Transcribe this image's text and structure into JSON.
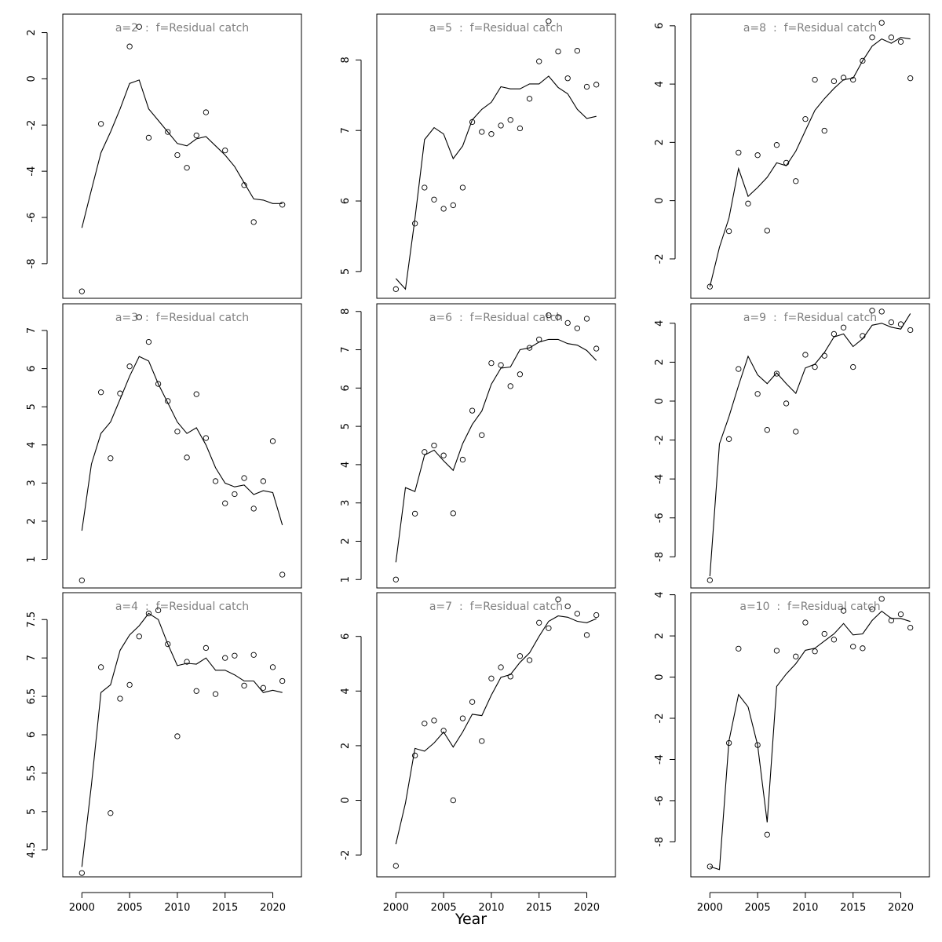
{
  "figure": {
    "xlabel": "Year"
  },
  "chart_data": [
    {
      "type": "line",
      "title": "a=2  :  f=Residual catch",
      "xlim": [
        1998,
        2023
      ],
      "ylim": [
        -9.5,
        2.8
      ],
      "xticks": [
        2000,
        2005,
        2010,
        2015,
        2020
      ],
      "yticks": [
        -8,
        -6,
        -4,
        -2,
        0,
        2
      ],
      "series": [
        {
          "kind": "points",
          "x": [
            2000,
            2002,
            2005,
            2006,
            2007,
            2009,
            2010,
            2011,
            2012,
            2013,
            2015,
            2017,
            2018,
            2021
          ],
          "y": [
            -9.2,
            -1.95,
            1.4,
            2.25,
            -2.55,
            -2.3,
            -3.3,
            -3.85,
            -2.45,
            -1.45,
            -3.1,
            -4.6,
            -6.2,
            -5.45
          ]
        },
        {
          "kind": "line",
          "x": [
            2000,
            2001,
            2002,
            2003,
            2004,
            2005,
            2006,
            2007,
            2008,
            2009,
            2010,
            2011,
            2012,
            2013,
            2014,
            2015,
            2016,
            2017,
            2018,
            2019,
            2020,
            2021
          ],
          "y": [
            -6.45,
            -4.8,
            -3.2,
            -2.3,
            -1.3,
            -0.2,
            -0.05,
            -1.3,
            -1.8,
            -2.3,
            -2.8,
            -2.9,
            -2.6,
            -2.5,
            -2.9,
            -3.3,
            -3.8,
            -4.5,
            -5.2,
            -5.25,
            -5.4,
            -5.4
          ]
        }
      ]
    },
    {
      "type": "line",
      "title": "a=3  :  f=Residual catch",
      "xlim": [
        1998,
        2023
      ],
      "ylim": [
        0.25,
        7.7
      ],
      "xticks": [
        2000,
        2005,
        2010,
        2015,
        2020
      ],
      "yticks": [
        1,
        2,
        3,
        4,
        5,
        6,
        7
      ],
      "series": [
        {
          "kind": "points",
          "x": [
            2000,
            2002,
            2003,
            2004,
            2005,
            2006,
            2007,
            2008,
            2009,
            2010,
            2011,
            2012,
            2013,
            2014,
            2015,
            2016,
            2017,
            2018,
            2019,
            2020,
            2021
          ],
          "y": [
            0.45,
            5.38,
            3.65,
            5.35,
            6.06,
            7.35,
            6.7,
            5.6,
            5.15,
            4.35,
            3.67,
            5.33,
            4.18,
            3.05,
            2.47,
            2.71,
            3.13,
            2.33,
            3.05,
            4.1,
            0.6
          ]
        },
        {
          "kind": "line",
          "x": [
            2000,
            2001,
            2002,
            2003,
            2004,
            2005,
            2006,
            2007,
            2008,
            2009,
            2010,
            2011,
            2012,
            2013,
            2014,
            2015,
            2016,
            2017,
            2018,
            2019,
            2020,
            2021
          ],
          "y": [
            1.75,
            3.5,
            4.3,
            4.6,
            5.2,
            5.8,
            6.32,
            6.2,
            5.6,
            5.1,
            4.6,
            4.3,
            4.45,
            4.0,
            3.4,
            3.0,
            2.9,
            2.95,
            2.7,
            2.8,
            2.75,
            1.9
          ]
        }
      ]
    },
    {
      "type": "line",
      "title": "a=4  :  f=Residual catch",
      "xlim": [
        1998,
        2023
      ],
      "ylim": [
        4.15,
        7.85
      ],
      "xticks": [
        2000,
        2005,
        2010,
        2015,
        2020
      ],
      "yticks": [
        4.5,
        5.0,
        5.5,
        6.0,
        6.5,
        7.0,
        7.5
      ],
      "series": [
        {
          "kind": "points",
          "x": [
            2000,
            2002,
            2003,
            2004,
            2005,
            2006,
            2007,
            2008,
            2009,
            2010,
            2011,
            2012,
            2013,
            2014,
            2015,
            2016,
            2017,
            2018,
            2019,
            2020,
            2021
          ],
          "y": [
            4.2,
            6.88,
            4.98,
            6.47,
            6.65,
            7.28,
            7.58,
            7.62,
            7.18,
            5.98,
            6.95,
            6.57,
            7.13,
            6.53,
            7.0,
            7.03,
            6.64,
            7.04,
            6.61,
            6.88,
            6.7
          ]
        },
        {
          "kind": "line",
          "x": [
            2000,
            2001,
            2002,
            2003,
            2004,
            2005,
            2006,
            2007,
            2008,
            2009,
            2010,
            2011,
            2012,
            2013,
            2014,
            2015,
            2016,
            2017,
            2018,
            2019,
            2020,
            2021
          ],
          "y": [
            4.28,
            5.35,
            6.55,
            6.65,
            7.1,
            7.3,
            7.42,
            7.58,
            7.5,
            7.18,
            6.9,
            6.93,
            6.92,
            7.0,
            6.84,
            6.84,
            6.78,
            6.7,
            6.7,
            6.55,
            6.58,
            6.55
          ]
        }
      ]
    },
    {
      "type": "line",
      "title": "a=5  :  f=Residual catch",
      "xlim": [
        1998,
        2023
      ],
      "ylim": [
        4.62,
        8.65
      ],
      "xticks": [
        2000,
        2005,
        2010,
        2015,
        2020
      ],
      "yticks": [
        5,
        6,
        7,
        8
      ],
      "series": [
        {
          "kind": "points",
          "x": [
            2000,
            2002,
            2003,
            2004,
            2005,
            2006,
            2007,
            2008,
            2009,
            2010,
            2011,
            2012,
            2013,
            2014,
            2015,
            2016,
            2017,
            2018,
            2019,
            2020,
            2021
          ],
          "y": [
            4.75,
            5.68,
            6.19,
            6.02,
            5.89,
            5.94,
            6.19,
            7.12,
            6.98,
            6.95,
            7.07,
            7.15,
            7.03,
            7.45,
            7.98,
            8.55,
            8.12,
            7.74,
            8.13,
            7.62,
            7.65
          ]
        },
        {
          "kind": "line",
          "x": [
            2000,
            2001,
            2002,
            2003,
            2004,
            2005,
            2006,
            2007,
            2008,
            2009,
            2010,
            2011,
            2012,
            2013,
            2014,
            2015,
            2016,
            2017,
            2018,
            2019,
            2020,
            2021
          ],
          "y": [
            4.9,
            4.75,
            5.75,
            6.87,
            7.04,
            6.95,
            6.6,
            6.78,
            7.15,
            7.3,
            7.4,
            7.62,
            7.59,
            7.59,
            7.66,
            7.66,
            7.77,
            7.61,
            7.52,
            7.3,
            7.17,
            7.2
          ]
        }
      ]
    },
    {
      "type": "line",
      "title": "a=6  :  f=Residual catch",
      "xlim": [
        1998,
        2023
      ],
      "ylim": [
        0.78,
        8.2
      ],
      "xticks": [
        2000,
        2005,
        2010,
        2015,
        2020
      ],
      "yticks": [
        1,
        2,
        3,
        4,
        5,
        6,
        7,
        8
      ],
      "series": [
        {
          "kind": "points",
          "x": [
            2000,
            2002,
            2003,
            2004,
            2005,
            2006,
            2007,
            2008,
            2009,
            2010,
            2011,
            2012,
            2013,
            2014,
            2015,
            2016,
            2017,
            2018,
            2019,
            2020,
            2021
          ],
          "y": [
            1.0,
            2.72,
            4.33,
            4.5,
            4.24,
            2.73,
            4.13,
            5.41,
            4.77,
            6.65,
            6.6,
            6.05,
            6.36,
            7.05,
            7.27,
            7.9,
            7.85,
            7.7,
            7.56,
            7.81,
            7.03
          ]
        },
        {
          "kind": "line",
          "x": [
            2000,
            2001,
            2002,
            2003,
            2004,
            2005,
            2006,
            2007,
            2008,
            2009,
            2010,
            2011,
            2012,
            2013,
            2014,
            2015,
            2016,
            2017,
            2018,
            2019,
            2020,
            2021
          ],
          "y": [
            1.45,
            3.4,
            3.3,
            4.25,
            4.38,
            4.1,
            3.85,
            4.55,
            5.05,
            5.4,
            6.1,
            6.52,
            6.55,
            7.0,
            7.05,
            7.2,
            7.27,
            7.27,
            7.16,
            7.12,
            6.98,
            6.72
          ]
        }
      ]
    },
    {
      "type": "line",
      "title": "a=7  :  f=Residual catch",
      "xlim": [
        1998,
        2023
      ],
      "ylim": [
        -2.8,
        7.6
      ],
      "xticks": [
        2000,
        2005,
        2010,
        2015,
        2020
      ],
      "yticks": [
        -2,
        0,
        2,
        4,
        6
      ],
      "series": [
        {
          "kind": "points",
          "x": [
            2000,
            2002,
            2003,
            2004,
            2005,
            2006,
            2007,
            2008,
            2009,
            2010,
            2011,
            2012,
            2013,
            2014,
            2015,
            2016,
            2017,
            2018,
            2019,
            2020,
            2021
          ],
          "y": [
            -2.4,
            1.64,
            2.81,
            2.92,
            2.55,
            0.0,
            3.0,
            3.6,
            2.17,
            4.46,
            4.87,
            4.53,
            5.28,
            5.13,
            6.5,
            6.3,
            7.35,
            7.1,
            6.83,
            6.05,
            6.78
          ]
        },
        {
          "kind": "line",
          "x": [
            2000,
            2001,
            2002,
            2003,
            2004,
            2005,
            2006,
            2007,
            2008,
            2009,
            2010,
            2011,
            2012,
            2013,
            2014,
            2015,
            2016,
            2017,
            2018,
            2019,
            2020,
            2021
          ],
          "y": [
            -1.6,
            -0.1,
            1.9,
            1.8,
            2.1,
            2.5,
            1.95,
            2.5,
            3.15,
            3.1,
            3.85,
            4.5,
            4.6,
            5.05,
            5.4,
            6.0,
            6.55,
            6.75,
            6.7,
            6.55,
            6.5,
            6.65
          ]
        }
      ]
    },
    {
      "type": "line",
      "title": "a=8  :  f=Residual catch",
      "xlim": [
        1998,
        2023
      ],
      "ylim": [
        -3.35,
        6.4
      ],
      "xticks": [
        2000,
        2005,
        2010,
        2015,
        2020
      ],
      "yticks": [
        -2,
        0,
        2,
        4,
        6
      ],
      "series": [
        {
          "kind": "points",
          "x": [
            2000,
            2002,
            2003,
            2004,
            2005,
            2006,
            2007,
            2008,
            2009,
            2010,
            2011,
            2012,
            2013,
            2014,
            2015,
            2016,
            2017,
            2018,
            2019,
            2020,
            2021
          ],
          "y": [
            -2.95,
            -1.05,
            1.65,
            -0.1,
            1.56,
            -1.03,
            1.91,
            1.3,
            0.67,
            2.8,
            4.15,
            2.4,
            4.1,
            4.22,
            4.15,
            4.8,
            5.6,
            6.1,
            5.6,
            5.45,
            4.2
          ]
        },
        {
          "kind": "line",
          "x": [
            2000,
            2001,
            2002,
            2003,
            2004,
            2005,
            2006,
            2007,
            2008,
            2009,
            2010,
            2011,
            2012,
            2013,
            2014,
            2015,
            2016,
            2017,
            2018,
            2019,
            2020,
            2021
          ],
          "y": [
            -2.95,
            -1.6,
            -0.6,
            1.1,
            0.15,
            0.45,
            0.8,
            1.3,
            1.2,
            1.7,
            2.4,
            3.1,
            3.5,
            3.85,
            4.15,
            4.2,
            4.8,
            5.3,
            5.55,
            5.4,
            5.6,
            5.55
          ]
        }
      ]
    },
    {
      "type": "line",
      "title": "a=9  :  f=Residual catch",
      "xlim": [
        1998,
        2023
      ],
      "ylim": [
        -9.6,
        5.0
      ],
      "xticks": [
        2000,
        2005,
        2010,
        2015,
        2020
      ],
      "yticks": [
        -8,
        -6,
        -4,
        -2,
        0,
        2,
        4
      ],
      "series": [
        {
          "kind": "points",
          "x": [
            2000,
            2002,
            2003,
            2005,
            2006,
            2007,
            2008,
            2009,
            2010,
            2011,
            2012,
            2013,
            2014,
            2015,
            2016,
            2017,
            2018,
            2019,
            2020,
            2021
          ],
          "y": [
            -9.2,
            -1.95,
            1.65,
            0.37,
            -1.48,
            1.41,
            -0.12,
            -1.57,
            2.38,
            1.75,
            2.33,
            3.45,
            3.78,
            1.75,
            3.35,
            4.65,
            4.6,
            4.05,
            3.95,
            3.65
          ]
        },
        {
          "kind": "line",
          "x": [
            2000,
            2001,
            2002,
            2003,
            2004,
            2005,
            2006,
            2007,
            2008,
            2009,
            2010,
            2011,
            2012,
            2013,
            2014,
            2015,
            2016,
            2017,
            2018,
            2019,
            2020,
            2021
          ],
          "y": [
            -9.0,
            -2.2,
            -0.8,
            0.8,
            2.3,
            1.35,
            0.9,
            1.45,
            0.9,
            0.4,
            1.7,
            1.9,
            2.5,
            3.3,
            3.45,
            2.8,
            3.2,
            3.9,
            4.0,
            3.8,
            3.7,
            4.5
          ]
        }
      ]
    },
    {
      "type": "line",
      "title": "a=10  :  f=Residual catch",
      "xlim": [
        1998,
        2023
      ],
      "ylim": [
        -9.7,
        4.1
      ],
      "xticks": [
        2000,
        2005,
        2010,
        2015,
        2020
      ],
      "yticks": [
        -8,
        -6,
        -4,
        -2,
        0,
        2,
        4
      ],
      "series": [
        {
          "kind": "points",
          "x": [
            2000,
            2002,
            2003,
            2005,
            2006,
            2007,
            2009,
            2010,
            2011,
            2012,
            2013,
            2014,
            2015,
            2016,
            2017,
            2018,
            2019,
            2020,
            2021
          ],
          "y": [
            -9.2,
            -3.2,
            1.38,
            -3.3,
            -7.65,
            1.28,
            1.0,
            2.65,
            1.25,
            2.1,
            1.82,
            3.22,
            1.48,
            1.4,
            3.3,
            3.8,
            2.75,
            3.05,
            2.4
          ]
        },
        {
          "kind": "line",
          "x": [
            2000,
            2001,
            2002,
            2003,
            2004,
            2005,
            2006,
            2007,
            2008,
            2009,
            2010,
            2011,
            2012,
            2013,
            2014,
            2015,
            2016,
            2017,
            2018,
            2019,
            2020,
            2021
          ],
          "y": [
            -9.2,
            -9.35,
            -3.1,
            -0.85,
            -1.45,
            -3.3,
            -7.05,
            -0.45,
            0.15,
            0.65,
            1.3,
            1.4,
            1.75,
            2.1,
            2.6,
            2.05,
            2.1,
            2.75,
            3.2,
            2.85,
            2.85,
            2.7
          ]
        }
      ]
    }
  ]
}
